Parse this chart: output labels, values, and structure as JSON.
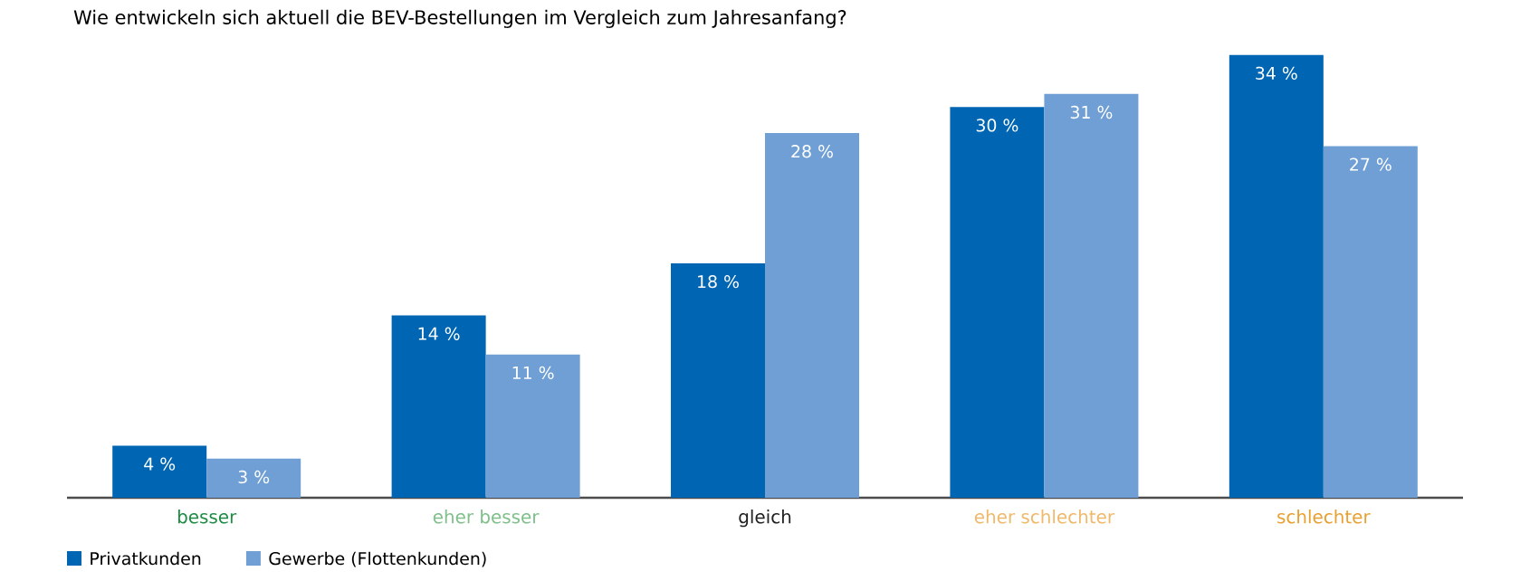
{
  "chart_data": {
    "type": "bar",
    "title": "Wie entwickeln sich aktuell die BEV-Bestellungen im Vergleich zum Jahresanfang?",
    "categories": [
      "besser",
      "eher besser",
      "gleich",
      "eher schlechter",
      "schlechter"
    ],
    "series": [
      {
        "name": "Privatkunden",
        "color": "#0066b3",
        "values": [
          4,
          14,
          18,
          30,
          34
        ],
        "value_labels": [
          "4 %",
          "14 %",
          "18 %",
          "30 %",
          "34 %"
        ]
      },
      {
        "name": "Gewerbe (Flottenkunden)",
        "color": "#6f9fd5",
        "values": [
          3,
          11,
          28,
          31,
          27
        ],
        "value_labels": [
          "3 %",
          "11 %",
          "28 %",
          "31 %",
          "27 %"
        ]
      }
    ],
    "tick_labels": "x",
    "legend": "bottom"
  }
}
